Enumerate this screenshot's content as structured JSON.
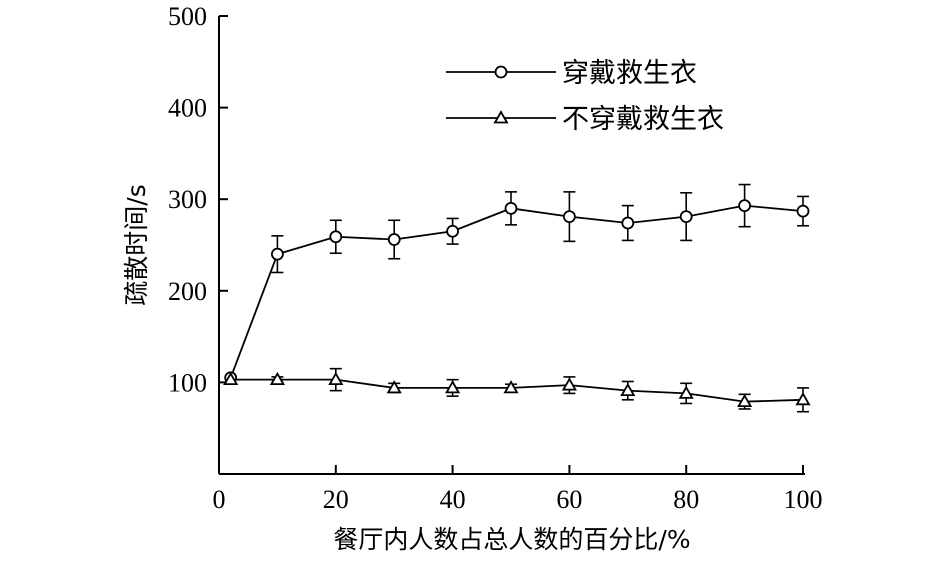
{
  "chart_data": {
    "type": "line",
    "title": "",
    "xlabel": "餐厅内人数占总人数的百分比/%",
    "ylabel": "疏散时间/s",
    "xlim": [
      0,
      100
    ],
    "ylim": [
      0,
      500
    ],
    "x_ticks": [
      "0",
      "20",
      "40",
      "60",
      "80",
      "100"
    ],
    "y_ticks": [
      "100",
      "200",
      "300",
      "400",
      "500"
    ],
    "grid": false,
    "legend_position": "top-right",
    "series": [
      {
        "name": "穿戴救生衣",
        "marker": "circle",
        "color": "#000000",
        "x": [
          2,
          10,
          20,
          30,
          40,
          50,
          60,
          70,
          80,
          90,
          100
        ],
        "y": [
          105,
          240,
          259,
          256,
          265,
          290,
          281,
          274,
          281,
          293,
          287
        ],
        "err": [
          0,
          20,
          18,
          21,
          14,
          18,
          27,
          19,
          26,
          23,
          16
        ]
      },
      {
        "name": "不穿戴救生衣",
        "marker": "triangle",
        "color": "#000000",
        "x": [
          2,
          10,
          20,
          30,
          40,
          50,
          60,
          70,
          80,
          90,
          100
        ],
        "y": [
          103,
          103,
          103,
          94,
          94,
          94,
          97,
          91,
          88,
          79,
          81
        ],
        "err": [
          0,
          3,
          12,
          5,
          9,
          4,
          9,
          10,
          11,
          8,
          13
        ]
      }
    ]
  }
}
